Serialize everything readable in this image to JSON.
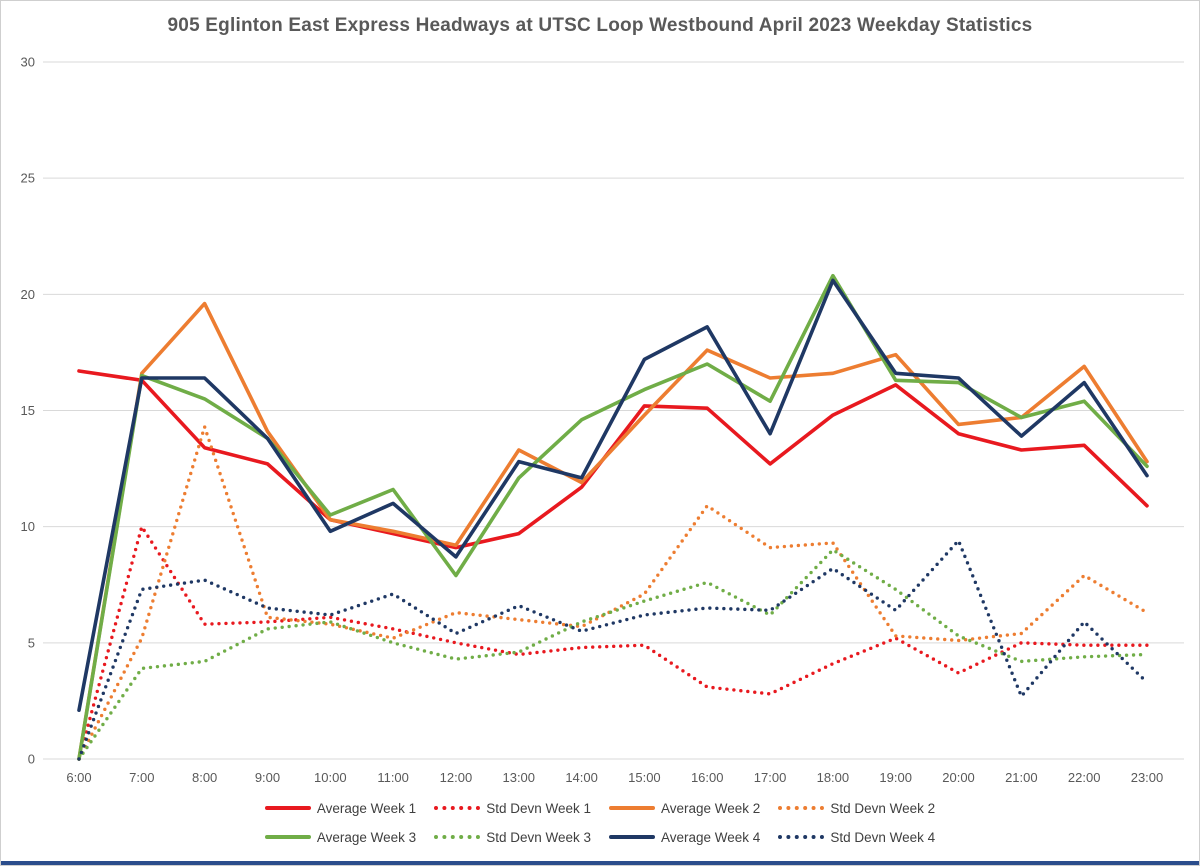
{
  "title": "905 Eglinton East Express Headways at UTSC Loop Westbound April 2023 Weekday Statistics",
  "colors": {
    "week1": "#e8191f",
    "week2": "#ed7d31",
    "week3": "#70ad47",
    "week4": "#1f3864",
    "gridline": "#d9d9d9",
    "axis_text": "#595959",
    "title_text": "#595959",
    "bottom_bar": "#2b4d8c"
  },
  "chart_data": {
    "type": "line",
    "title": "905 Eglinton East Express Headways at UTSC Loop Westbound April 2023 Weekday Statistics",
    "xlabel": "",
    "ylabel": "",
    "x_labels": [
      "6:00",
      "7:00",
      "8:00",
      "9:00",
      "10:00",
      "11:00",
      "12:00",
      "13:00",
      "14:00",
      "15:00",
      "16:00",
      "17:00",
      "18:00",
      "19:00",
      "20:00",
      "21:00",
      "22:00",
      "23:00"
    ],
    "y_ticks": [
      0,
      5,
      10,
      15,
      20,
      25,
      30
    ],
    "ylim": [
      0,
      30
    ],
    "grid": true,
    "legend_position": "bottom",
    "series": [
      {
        "name": "Average Week 1",
        "color": "#e8191f",
        "style": "solid",
        "values": [
          16.7,
          16.3,
          13.4,
          12.7,
          10.3,
          9.7,
          9.1,
          9.7,
          11.7,
          15.2,
          15.1,
          12.7,
          14.8,
          16.1,
          14.0,
          13.3,
          13.5,
          10.9
        ]
      },
      {
        "name": "Std Devn Week 1",
        "color": "#e8191f",
        "style": "dotted",
        "values": [
          0,
          10.0,
          5.8,
          5.9,
          6.1,
          5.6,
          5.0,
          4.5,
          4.8,
          4.9,
          3.1,
          2.8,
          4.1,
          5.2,
          3.7,
          5.0,
          4.9,
          4.9
        ]
      },
      {
        "name": "Average Week 2",
        "color": "#ed7d31",
        "style": "solid",
        "values": [
          0,
          16.6,
          19.6,
          14.1,
          10.3,
          9.8,
          9.2,
          13.3,
          11.9,
          14.8,
          17.6,
          16.4,
          16.6,
          17.4,
          14.4,
          14.7,
          16.9,
          12.8
        ]
      },
      {
        "name": "Std Devn Week 2",
        "color": "#ed7d31",
        "style": "dotted",
        "values": [
          0,
          5.2,
          14.3,
          6.1,
          5.8,
          5.2,
          6.3,
          6.0,
          5.7,
          7.1,
          10.9,
          9.1,
          9.3,
          5.3,
          5.1,
          5.4,
          7.9,
          6.3
        ]
      },
      {
        "name": "Average Week 3",
        "color": "#70ad47",
        "style": "solid",
        "values": [
          0,
          16.5,
          15.5,
          13.8,
          10.5,
          11.6,
          7.9,
          12.1,
          14.6,
          15.9,
          17.0,
          15.4,
          20.8,
          16.3,
          16.2,
          14.7,
          15.4,
          12.6
        ]
      },
      {
        "name": "Std Devn Week 3",
        "color": "#70ad47",
        "style": "dotted",
        "values": [
          0,
          3.9,
          4.2,
          5.6,
          5.9,
          5.0,
          4.3,
          4.6,
          5.9,
          6.8,
          7.6,
          6.2,
          9.0,
          7.3,
          5.3,
          4.2,
          4.4,
          4.5
        ]
      },
      {
        "name": "Average Week 4",
        "color": "#1f3864",
        "style": "solid",
        "values": [
          2.1,
          16.4,
          16.4,
          13.8,
          9.8,
          11.0,
          8.7,
          12.8,
          12.1,
          17.2,
          18.6,
          14.0,
          20.6,
          16.6,
          16.4,
          13.9,
          16.2,
          12.2
        ]
      },
      {
        "name": "Std Devn Week 4",
        "color": "#1f3864",
        "style": "dotted",
        "values": [
          0,
          7.3,
          7.7,
          6.5,
          6.2,
          7.1,
          5.4,
          6.6,
          5.5,
          6.2,
          6.5,
          6.4,
          8.2,
          6.4,
          9.4,
          2.7,
          5.9,
          3.3
        ]
      }
    ]
  }
}
